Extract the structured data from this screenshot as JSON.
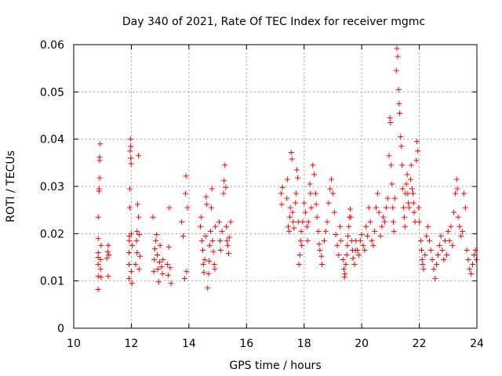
{
  "chart_data": {
    "type": "scatter",
    "title": "Day 340 of 2021, Rate Of TEC Index for receiver mgmc",
    "xlabel": "GPS time / hours",
    "ylabel": "ROTI / TECUs",
    "xlim": [
      10,
      24
    ],
    "ylim": [
      0,
      0.06
    ],
    "xticks": [
      10,
      12,
      14,
      16,
      18,
      20,
      22,
      24
    ],
    "yticks": [
      0,
      0.01,
      0.02,
      0.03,
      0.04,
      0.05,
      0.06
    ],
    "ytick_labels": [
      "0",
      "0.01",
      "0.02",
      "0.03",
      "0.04",
      "0.05",
      "0.06"
    ],
    "grid": true,
    "marker": "+",
    "color": "#ff0000",
    "series": [
      {
        "name": "ROTI",
        "points": [
          [
            10.85,
            0.0082
          ],
          [
            10.85,
            0.011
          ],
          [
            10.85,
            0.0135
          ],
          [
            10.85,
            0.015
          ],
          [
            10.85,
            0.016
          ],
          [
            10.85,
            0.019
          ],
          [
            10.85,
            0.0235
          ],
          [
            10.88,
            0.029
          ],
          [
            10.88,
            0.0295
          ],
          [
            10.9,
            0.0355
          ],
          [
            10.9,
            0.0362
          ],
          [
            10.92,
            0.039
          ],
          [
            10.9,
            0.0318
          ],
          [
            10.93,
            0.0145
          ],
          [
            10.93,
            0.0125
          ],
          [
            10.95,
            0.0175
          ],
          [
            10.95,
            0.0108
          ],
          [
            11.15,
            0.0148
          ],
          [
            11.18,
            0.0162
          ],
          [
            11.2,
            0.0175
          ],
          [
            11.2,
            0.011
          ],
          [
            11.22,
            0.0155
          ],
          [
            11.92,
            0.0105
          ],
          [
            11.92,
            0.0135
          ],
          [
            11.92,
            0.016
          ],
          [
            11.93,
            0.0185
          ],
          [
            11.93,
            0.0195
          ],
          [
            11.95,
            0.0255
          ],
          [
            11.95,
            0.0295
          ],
          [
            11.96,
            0.0375
          ],
          [
            11.97,
            0.04
          ],
          [
            11.98,
            0.0385
          ],
          [
            11.98,
            0.036
          ],
          [
            11.99,
            0.0348
          ],
          [
            12.0,
            0.02
          ],
          [
            12.0,
            0.012
          ],
          [
            12.02,
            0.0095
          ],
          [
            12.03,
            0.0175
          ],
          [
            12.15,
            0.0135
          ],
          [
            12.18,
            0.0185
          ],
          [
            12.2,
            0.016
          ],
          [
            12.2,
            0.0205
          ],
          [
            12.22,
            0.0262
          ],
          [
            12.25,
            0.0235
          ],
          [
            12.25,
            0.0365
          ],
          [
            12.27,
            0.0125
          ],
          [
            12.28,
            0.0198
          ],
          [
            12.3,
            0.0152
          ],
          [
            12.75,
            0.0235
          ],
          [
            12.78,
            0.012
          ],
          [
            12.8,
            0.0145
          ],
          [
            12.82,
            0.0168
          ],
          [
            12.85,
            0.0185
          ],
          [
            12.88,
            0.0198
          ],
          [
            12.9,
            0.0155
          ],
          [
            12.92,
            0.0125
          ],
          [
            12.95,
            0.0098
          ],
          [
            12.98,
            0.014
          ],
          [
            13.0,
            0.0175
          ],
          [
            13.05,
            0.013
          ],
          [
            13.08,
            0.0115
          ],
          [
            13.1,
            0.0145
          ],
          [
            13.25,
            0.0135
          ],
          [
            13.28,
            0.0112
          ],
          [
            13.3,
            0.0172
          ],
          [
            13.32,
            0.0255
          ],
          [
            13.35,
            0.0128
          ],
          [
            13.38,
            0.0095
          ],
          [
            13.75,
            0.0225
          ],
          [
            13.8,
            0.0195
          ],
          [
            13.85,
            0.0105
          ],
          [
            13.88,
            0.0285
          ],
          [
            13.9,
            0.0322
          ],
          [
            13.92,
            0.012
          ],
          [
            13.95,
            0.0255
          ],
          [
            14.4,
            0.0215
          ],
          [
            14.42,
            0.0235
          ],
          [
            14.45,
            0.0185
          ],
          [
            14.48,
            0.0165
          ],
          [
            14.5,
            0.0135
          ],
          [
            14.52,
            0.0118
          ],
          [
            14.55,
            0.0145
          ],
          [
            14.58,
            0.0195
          ],
          [
            14.6,
            0.0278
          ],
          [
            14.62,
            0.0262
          ],
          [
            14.65,
            0.0085
          ],
          [
            14.68,
            0.0115
          ],
          [
            14.7,
            0.0142
          ],
          [
            14.72,
            0.0175
          ],
          [
            14.75,
            0.0205
          ],
          [
            14.78,
            0.0255
          ],
          [
            14.8,
            0.0295
          ],
          [
            14.82,
            0.0185
          ],
          [
            14.85,
            0.0162
          ],
          [
            14.88,
            0.0135
          ],
          [
            14.9,
            0.0125
          ],
          [
            14.92,
            0.0215
          ],
          [
            15.05,
            0.0225
          ],
          [
            15.08,
            0.0185
          ],
          [
            15.1,
            0.0165
          ],
          [
            15.15,
            0.0205
          ],
          [
            15.2,
            0.0285
          ],
          [
            15.22,
            0.0312
          ],
          [
            15.25,
            0.0345
          ],
          [
            15.28,
            0.0298
          ],
          [
            15.3,
            0.0215
          ],
          [
            15.32,
            0.0185
          ],
          [
            15.35,
            0.0175
          ],
          [
            15.38,
            0.0158
          ],
          [
            15.4,
            0.0192
          ],
          [
            15.45,
            0.0225
          ],
          [
            17.2,
            0.0285
          ],
          [
            17.22,
            0.0262
          ],
          [
            17.25,
            0.0298
          ],
          [
            17.4,
            0.0275
          ],
          [
            17.42,
            0.0315
          ],
          [
            17.45,
            0.0215
          ],
          [
            17.48,
            0.0205
          ],
          [
            17.5,
            0.0235
          ],
          [
            17.52,
            0.0255
          ],
          [
            17.55,
            0.0372
          ],
          [
            17.58,
            0.0358
          ],
          [
            17.6,
            0.0245
          ],
          [
            17.62,
            0.0225
          ],
          [
            17.65,
            0.0212
          ],
          [
            17.7,
            0.0265
          ],
          [
            17.72,
            0.0285
          ],
          [
            17.75,
            0.0335
          ],
          [
            17.78,
            0.0318
          ],
          [
            17.8,
            0.0225
          ],
          [
            17.82,
            0.0135
          ],
          [
            17.85,
            0.0155
          ],
          [
            17.88,
            0.0185
          ],
          [
            17.9,
            0.0205
          ],
          [
            17.92,
            0.0175
          ],
          [
            17.95,
            0.0225
          ],
          [
            18.0,
            0.0265
          ],
          [
            18.05,
            0.0245
          ],
          [
            18.1,
            0.0215
          ],
          [
            18.12,
            0.0185
          ],
          [
            18.15,
            0.0225
          ],
          [
            18.2,
            0.0305
          ],
          [
            18.22,
            0.0285
          ],
          [
            18.25,
            0.0255
          ],
          [
            18.3,
            0.0345
          ],
          [
            18.35,
            0.0325
          ],
          [
            18.4,
            0.0285
          ],
          [
            18.42,
            0.0262
          ],
          [
            18.45,
            0.0235
          ],
          [
            18.5,
            0.0205
          ],
          [
            18.52,
            0.0178
          ],
          [
            18.55,
            0.0165
          ],
          [
            18.6,
            0.0152
          ],
          [
            18.62,
            0.0135
          ],
          [
            18.7,
            0.0185
          ],
          [
            18.75,
            0.0205
          ],
          [
            18.8,
            0.0225
          ],
          [
            18.85,
            0.0265
          ],
          [
            18.9,
            0.0295
          ],
          [
            18.95,
            0.0315
          ],
          [
            19.0,
            0.0285
          ],
          [
            19.05,
            0.0245
          ],
          [
            19.1,
            0.0198
          ],
          [
            19.15,
            0.0175
          ],
          [
            19.2,
            0.0155
          ],
          [
            19.25,
            0.0215
          ],
          [
            19.28,
            0.0185
          ],
          [
            19.35,
            0.0145
          ],
          [
            19.38,
            0.0125
          ],
          [
            19.4,
            0.0108
          ],
          [
            19.42,
            0.0115
          ],
          [
            19.45,
            0.0135
          ],
          [
            19.48,
            0.0155
          ],
          [
            19.5,
            0.0175
          ],
          [
            19.52,
            0.0195
          ],
          [
            19.55,
            0.0215
          ],
          [
            19.58,
            0.0235
          ],
          [
            19.6,
            0.0252
          ],
          [
            19.62,
            0.0235
          ],
          [
            19.65,
            0.0185
          ],
          [
            19.68,
            0.0165
          ],
          [
            19.7,
            0.0148
          ],
          [
            19.75,
            0.0135
          ],
          [
            19.78,
            0.0165
          ],
          [
            19.8,
            0.0185
          ],
          [
            19.85,
            0.0165
          ],
          [
            19.9,
            0.0155
          ],
          [
            19.95,
            0.0185
          ],
          [
            20.0,
            0.0198
          ],
          [
            20.05,
            0.0175
          ],
          [
            20.1,
            0.0165
          ],
          [
            20.15,
            0.0215
          ],
          [
            20.2,
            0.0195
          ],
          [
            20.25,
            0.0255
          ],
          [
            20.3,
            0.0225
          ],
          [
            20.35,
            0.0185
          ],
          [
            20.4,
            0.0175
          ],
          [
            20.45,
            0.0205
          ],
          [
            20.5,
            0.0255
          ],
          [
            20.55,
            0.0285
          ],
          [
            20.6,
            0.0245
          ],
          [
            20.65,
            0.0195
          ],
          [
            20.7,
            0.0215
          ],
          [
            20.75,
            0.0235
          ],
          [
            20.8,
            0.0225
          ],
          [
            20.85,
            0.0255
          ],
          [
            20.9,
            0.0275
          ],
          [
            20.95,
            0.0365
          ],
          [
            20.98,
            0.0445
          ],
          [
            21.0,
            0.0435
          ],
          [
            21.02,
            0.0345
          ],
          [
            21.05,
            0.0305
          ],
          [
            21.08,
            0.0255
          ],
          [
            21.1,
            0.0225
          ],
          [
            21.12,
            0.0205
          ],
          [
            21.15,
            0.0275
          ],
          [
            21.2,
            0.0545
          ],
          [
            21.22,
            0.0592
          ],
          [
            21.25,
            0.0575
          ],
          [
            21.28,
            0.0505
          ],
          [
            21.3,
            0.0475
          ],
          [
            21.32,
            0.0455
          ],
          [
            21.35,
            0.0405
          ],
          [
            21.38,
            0.0385
          ],
          [
            21.4,
            0.0345
          ],
          [
            21.42,
            0.0295
          ],
          [
            21.45,
            0.0255
          ],
          [
            21.48,
            0.0235
          ],
          [
            21.5,
            0.0215
          ],
          [
            21.52,
            0.0285
          ],
          [
            21.55,
            0.0305
          ],
          [
            21.58,
            0.0325
          ],
          [
            21.6,
            0.0285
          ],
          [
            21.62,
            0.0265
          ],
          [
            21.65,
            0.0255
          ],
          [
            21.7,
            0.0315
          ],
          [
            21.72,
            0.0345
          ],
          [
            21.75,
            0.0295
          ],
          [
            21.78,
            0.0285
          ],
          [
            21.8,
            0.0265
          ],
          [
            21.82,
            0.0245
          ],
          [
            21.85,
            0.0225
          ],
          [
            21.9,
            0.0355
          ],
          [
            21.92,
            0.0395
          ],
          [
            21.95,
            0.0375
          ],
          [
            21.98,
            0.0255
          ],
          [
            22.0,
            0.0225
          ],
          [
            22.05,
            0.0185
          ],
          [
            22.08,
            0.0165
          ],
          [
            22.1,
            0.0145
          ],
          [
            22.12,
            0.0135
          ],
          [
            22.15,
            0.0125
          ],
          [
            22.2,
            0.0155
          ],
          [
            22.25,
            0.0195
          ],
          [
            22.3,
            0.0215
          ],
          [
            22.35,
            0.0185
          ],
          [
            22.4,
            0.0165
          ],
          [
            22.45,
            0.0145
          ],
          [
            22.5,
            0.0125
          ],
          [
            22.55,
            0.0105
          ],
          [
            22.6,
            0.0135
          ],
          [
            22.65,
            0.0155
          ],
          [
            22.7,
            0.0175
          ],
          [
            22.75,
            0.0195
          ],
          [
            22.8,
            0.0165
          ],
          [
            22.85,
            0.0145
          ],
          [
            22.9,
            0.0185
          ],
          [
            22.95,
            0.0155
          ],
          [
            23.0,
            0.0205
          ],
          [
            23.05,
            0.0185
          ],
          [
            23.1,
            0.0215
          ],
          [
            23.15,
            0.0175
          ],
          [
            23.2,
            0.0245
          ],
          [
            23.25,
            0.0285
          ],
          [
            23.3,
            0.0315
          ],
          [
            23.32,
            0.0295
          ],
          [
            23.35,
            0.0235
          ],
          [
            23.4,
            0.0215
          ],
          [
            23.45,
            0.0195
          ],
          [
            23.5,
            0.0205
          ],
          [
            23.55,
            0.0285
          ],
          [
            23.6,
            0.0255
          ],
          [
            23.65,
            0.0165
          ],
          [
            23.7,
            0.0145
          ],
          [
            23.75,
            0.0125
          ],
          [
            23.8,
            0.0115
          ],
          [
            23.85,
            0.0135
          ],
          [
            23.9,
            0.0155
          ],
          [
            23.95,
            0.0165
          ],
          [
            23.98,
            0.0145
          ]
        ]
      }
    ]
  }
}
